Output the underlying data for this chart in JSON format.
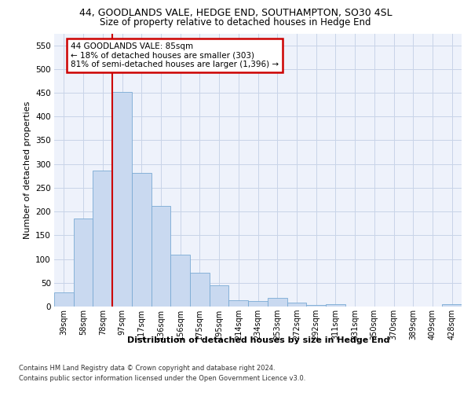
{
  "title1": "44, GOODLANDS VALE, HEDGE END, SOUTHAMPTON, SO30 4SL",
  "title2": "Size of property relative to detached houses in Hedge End",
  "xlabel": "Distribution of detached houses by size in Hedge End",
  "ylabel": "Number of detached properties",
  "categories": [
    "39sqm",
    "58sqm",
    "78sqm",
    "97sqm",
    "117sqm",
    "136sqm",
    "156sqm",
    "175sqm",
    "195sqm",
    "214sqm",
    "234sqm",
    "253sqm",
    "272sqm",
    "292sqm",
    "311sqm",
    "331sqm",
    "350sqm",
    "370sqm",
    "389sqm",
    "409sqm",
    "428sqm"
  ],
  "values": [
    30,
    185,
    287,
    452,
    282,
    212,
    110,
    71,
    45,
    13,
    11,
    18,
    8,
    4,
    5,
    0,
    0,
    0,
    0,
    0,
    5
  ],
  "bar_color": "#c9d9f0",
  "bar_edge_color": "#7aaad4",
  "grid_color": "#c8d4e8",
  "background_color": "#eef2fb",
  "vline_color": "#cc0000",
  "vline_index": 2,
  "annotation_line1": "44 GOODLANDS VALE: 85sqm",
  "annotation_line2": "← 18% of detached houses are smaller (303)",
  "annotation_line3": "81% of semi-detached houses are larger (1,396) →",
  "annotation_box_facecolor": "#ffffff",
  "annotation_border_color": "#cc0000",
  "footer1": "Contains HM Land Registry data © Crown copyright and database right 2024.",
  "footer2": "Contains public sector information licensed under the Open Government Licence v3.0.",
  "ylim_max": 575,
  "yticks": [
    0,
    50,
    100,
    150,
    200,
    250,
    300,
    350,
    400,
    450,
    500,
    550
  ]
}
